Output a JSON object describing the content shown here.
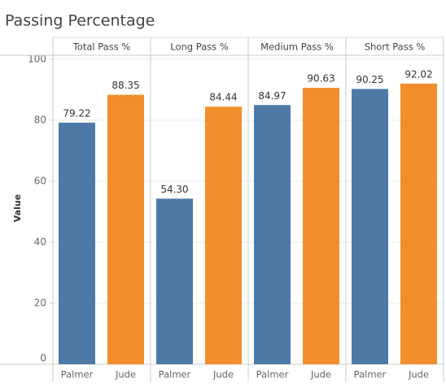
{
  "chart_data": {
    "type": "bar",
    "title": "Passing Percentage",
    "y_label": "Value",
    "categories": [
      "Total Pass %",
      "Long Pass %",
      "Medium Pass %",
      "Short Pass %"
    ],
    "series": [
      {
        "name": "Palmer",
        "color": "#4e79a7",
        "values": [
          79.22,
          54.3,
          84.97,
          90.25
        ],
        "value_labels": [
          "79.22",
          "54.30",
          "84.97",
          "90.25"
        ]
      },
      {
        "name": "Jude",
        "color": "#f28e2b",
        "values": [
          88.35,
          84.44,
          90.63,
          92.02
        ],
        "value_labels": [
          "88.35",
          "84.44",
          "90.63",
          "92.02"
        ]
      }
    ],
    "ylim": [
      0,
      101.3
    ],
    "yticks": [
      0,
      20,
      40,
      60,
      80,
      100
    ],
    "grid": true
  }
}
